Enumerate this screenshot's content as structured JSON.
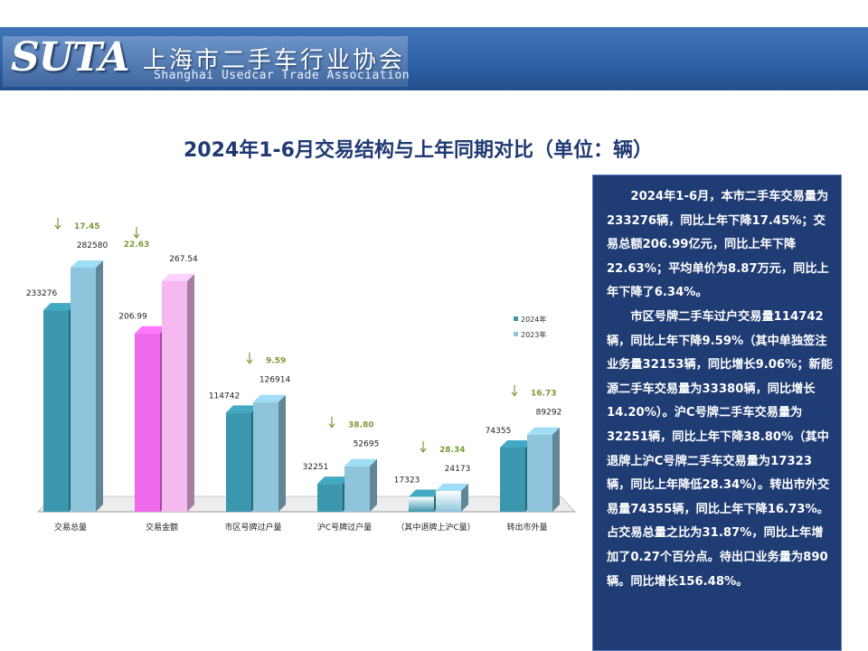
{
  "header": {
    "logo_text": "SUTA",
    "org_name_cn": "上海市二手车行业协会",
    "org_name_en": "Shanghai Usedcar Trade Association"
  },
  "title": "2024年1-6月交易结构与上年同期对比（单位：辆）",
  "chart_data": {
    "type": "bar",
    "categories": [
      "交易总量",
      "交易金额",
      "市区号牌过户量",
      "沪C号牌过户量",
      "（其中退牌上沪C量）",
      "转出市外量"
    ],
    "series": [
      {
        "name": "2024年",
        "values": [
          233276,
          206.99,
          114742,
          32251,
          17323,
          74355
        ]
      },
      {
        "name": "2023年",
        "values": [
          282580,
          267.54,
          126914,
          52695,
          24173,
          89292
        ]
      }
    ],
    "value_labels": {
      "2024年": [
        "233276",
        "206.99",
        "114742",
        "32251",
        "17323",
        "74355"
      ],
      "2023年": [
        "282580",
        "267.54",
        "126914",
        "52695",
        "24173",
        "89292"
      ]
    },
    "decline_pct": [
      "17.45",
      "22.63",
      "9.59",
      "38.80",
      "28.34",
      "16.73"
    ],
    "legend_position": "right",
    "colors": {
      "s2024": "#3a97ad",
      "s2023": "#8fc5dc",
      "amount2024": "#ee6aea",
      "amount2023": "#f6b9ef",
      "arrow": "#7b9a36"
    }
  },
  "summary": {
    "paragraphs": [
      "2024年1-6月，本市二手车交易量为233276辆，同比上年下降17.45%；交易总额206.99亿元，同比上年下降22.63%；平均单价为8.87万元，同比上年下降了6.34%。",
      "市区号牌二手车过户交易量114742辆，同比上年下降9.59%（其中单独签注业务量32153辆，同比增长9.06%；新能源二手车交易量为33380辆，同比增长14.20%）。沪C号牌二手车交易量为32251辆，同比上年下降38.80%（其中退牌上沪C号牌二手车交易量为17323辆，同比上年降低28.34%）。转出市外交易量74355辆，同比上年下降16.73%。占交易总量之比为31.87%，同比上年增加了0.27个百分点。待出口业务量为890辆。同比增长156.48%。"
    ]
  }
}
